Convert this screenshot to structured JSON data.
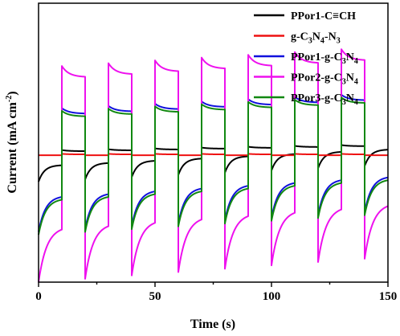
{
  "chart_data": {
    "type": "line",
    "xlabel": "Time (s)",
    "ylabel": {
      "main": "Current (mA cm",
      "sup": "-2",
      "end": ")"
    },
    "xlim": [
      0,
      150
    ],
    "xticks": [
      0,
      50,
      100,
      150
    ],
    "yticks": false,
    "grid": false,
    "legend_position": "top-right",
    "on_intervals": [
      [
        10,
        20
      ],
      [
        30,
        40
      ],
      [
        50,
        60
      ],
      [
        70,
        80
      ],
      [
        90,
        100
      ],
      [
        110,
        120
      ],
      [
        130,
        140
      ]
    ],
    "series": [
      {
        "name": "PPor1-C≡CH",
        "legend_parts": [
          [
            "PPor1-C≡CH",
            ""
          ]
        ],
        "color": "#000000",
        "model": {
          "dark_base": 0.42,
          "dark_start": 0.36,
          "dark_tau": 2.5,
          "dark_growth": 0.004,
          "on_peak": 0.472,
          "on_ss": 0.468,
          "on_tau": 3,
          "on_growth": 0.0015
        }
      },
      {
        "name": "g-C3N4-N3",
        "legend_parts": [
          [
            "g-C",
            ""
          ],
          [
            "3",
            "sub"
          ],
          [
            "N",
            ""
          ],
          [
            "4",
            "sub"
          ],
          [
            "-N",
            ""
          ],
          [
            "3",
            "sub"
          ]
        ],
        "color": "#ee1111",
        "model": {
          "dark_base": 0.455,
          "dark_start": 0.455,
          "dark_tau": 1,
          "dark_growth": 0,
          "on_peak": 0.46,
          "on_ss": 0.458,
          "on_tau": 3,
          "on_growth": 0
        }
      },
      {
        "name": "PPor1-g-C3N4",
        "legend_parts": [
          [
            "PPor1-g-C",
            ""
          ],
          [
            "3",
            "sub"
          ],
          [
            "N",
            ""
          ],
          [
            "4",
            "sub"
          ]
        ],
        "color": "#1010dd",
        "model": {
          "dark_base": 0.31,
          "dark_start": 0.18,
          "dark_tau": 3,
          "dark_growth": 0.005,
          "on_peak": 0.62,
          "on_ss": 0.6,
          "on_tau": 3,
          "on_growth": 0.004
        }
      },
      {
        "name": "PPor2-g-C3N4",
        "legend_parts": [
          [
            "PPor2-g-C",
            ""
          ],
          [
            "3",
            "sub"
          ],
          [
            "N",
            ""
          ],
          [
            "4",
            "sub"
          ]
        ],
        "color": "#ee11ee",
        "model": {
          "dark_base": 0.2,
          "dark_start": 0.0,
          "dark_tau": 3.5,
          "dark_growth": 0.006,
          "on_peak": 0.77,
          "on_ss": 0.73,
          "on_tau": 3,
          "on_growth": 0.005
        }
      },
      {
        "name": "PPor3-g-C3N4",
        "legend_parts": [
          [
            "PPor3-g-C",
            ""
          ],
          [
            "3",
            "sub"
          ],
          [
            "N",
            ""
          ],
          [
            "4",
            "sub"
          ]
        ],
        "color": "#118811",
        "model": {
          "dark_base": 0.3,
          "dark_start": 0.17,
          "dark_tau": 3,
          "dark_growth": 0.005,
          "on_peak": 0.61,
          "on_ss": 0.59,
          "on_tau": 3,
          "on_growth": 0.004
        }
      }
    ]
  }
}
